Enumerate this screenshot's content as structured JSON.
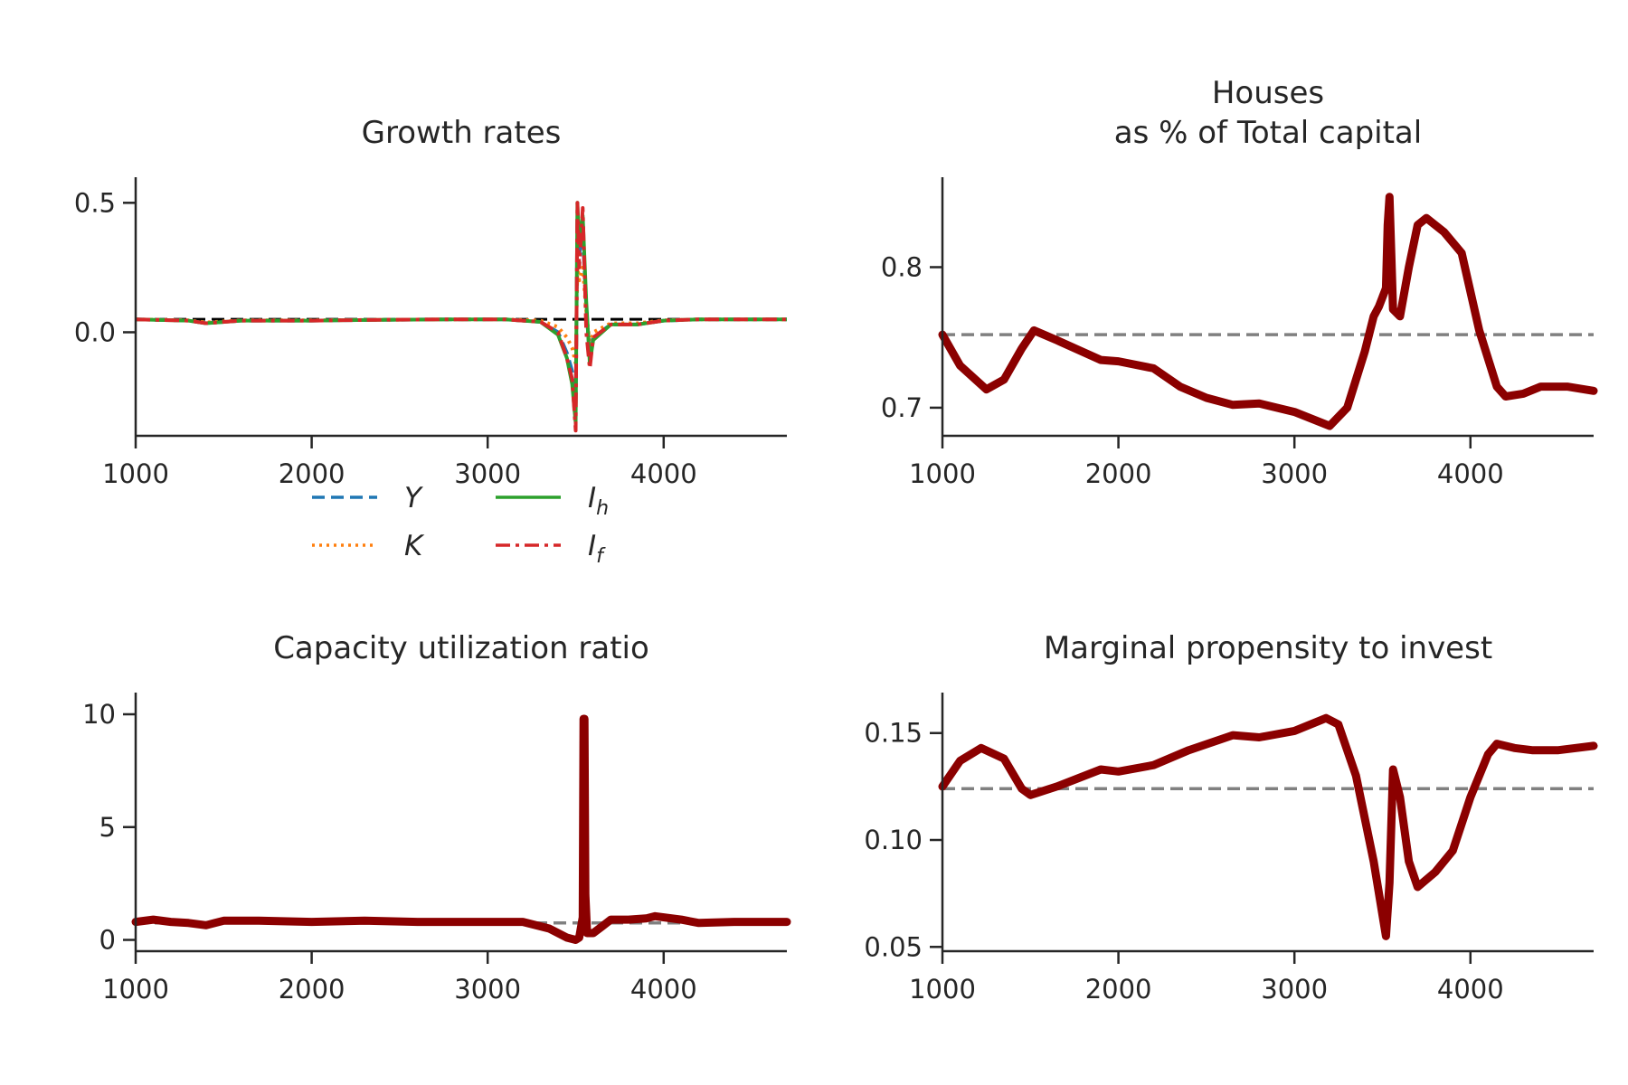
{
  "chart_data": [
    {
      "type": "line",
      "title": "Growth rates",
      "xlim": [
        1000,
        4700
      ],
      "ylim": [
        -0.4,
        0.55
      ],
      "x_ticks": [
        1000,
        2000,
        3000,
        4000
      ],
      "y_ticks": [
        0.0,
        0.5
      ],
      "y_tick_labels": [
        "0.0",
        "0.5"
      ],
      "reference_line": {
        "y": 0.05,
        "color": "#000000",
        "style": "dashed"
      },
      "legend": {
        "placement": "below",
        "columns": 2
      },
      "series": [
        {
          "name": "Y",
          "legend_label": "Y",
          "color": "#1f77b4",
          "style": "dashed",
          "x": [
            1000,
            1300,
            1400,
            1600,
            2000,
            2400,
            2800,
            3100,
            3300,
            3400,
            3450,
            3480,
            3500,
            3510,
            3520,
            3540,
            3560,
            3580,
            3600,
            3700,
            3850,
            4000,
            4200,
            4700
          ],
          "y": [
            0.05,
            0.045,
            0.035,
            0.045,
            0.045,
            0.048,
            0.05,
            0.05,
            0.04,
            0.0,
            -0.08,
            -0.15,
            -0.3,
            0.45,
            0.3,
            0.38,
            0.1,
            -0.1,
            -0.02,
            0.03,
            0.03,
            0.045,
            0.05,
            0.05
          ]
        },
        {
          "name": "K",
          "legend_label": "K",
          "color": "#ff7f0e",
          "style": "dotted",
          "x": [
            1000,
            1300,
            1400,
            1600,
            2000,
            2400,
            2800,
            3100,
            3300,
            3400,
            3450,
            3480,
            3500,
            3510,
            3520,
            3540,
            3560,
            3580,
            3600,
            3700,
            3850,
            4000,
            4200,
            4700
          ],
          "y": [
            0.05,
            0.046,
            0.038,
            0.046,
            0.046,
            0.048,
            0.05,
            0.05,
            0.045,
            0.02,
            -0.02,
            -0.06,
            -0.12,
            0.25,
            0.2,
            0.25,
            0.08,
            -0.05,
            0.0,
            0.035,
            0.035,
            0.046,
            0.05,
            0.05
          ]
        },
        {
          "name": "I_h",
          "legend_label": "I",
          "legend_sub": "h",
          "color": "#2ca02c",
          "style": "solid",
          "x": [
            1000,
            1300,
            1400,
            1600,
            2000,
            2400,
            2800,
            3100,
            3300,
            3400,
            3450,
            3480,
            3500,
            3510,
            3520,
            3540,
            3560,
            3580,
            3600,
            3700,
            3850,
            4000,
            4200,
            4700
          ],
          "y": [
            0.05,
            0.045,
            0.035,
            0.045,
            0.045,
            0.048,
            0.05,
            0.05,
            0.04,
            -0.01,
            -0.1,
            -0.2,
            -0.35,
            0.5,
            0.35,
            0.45,
            0.12,
            -0.12,
            -0.03,
            0.03,
            0.03,
            0.045,
            0.05,
            0.05
          ]
        },
        {
          "name": "I_f",
          "legend_label": "I",
          "legend_sub": "f",
          "color": "#d62728",
          "style": "dashdot",
          "x": [
            1000,
            1300,
            1400,
            1600,
            2000,
            2400,
            2800,
            3100,
            3300,
            3400,
            3450,
            3480,
            3500,
            3510,
            3520,
            3540,
            3560,
            3580,
            3600,
            3700,
            3850,
            4000,
            4200,
            4700
          ],
          "y": [
            0.05,
            0.045,
            0.035,
            0.045,
            0.045,
            0.048,
            0.05,
            0.05,
            0.04,
            0.0,
            -0.1,
            -0.18,
            -0.38,
            0.5,
            0.25,
            0.48,
            0.0,
            -0.14,
            -0.02,
            0.03,
            0.03,
            0.045,
            0.05,
            0.05
          ]
        }
      ]
    },
    {
      "type": "line",
      "title": "Houses\nas % of Total capital",
      "xlim": [
        1000,
        4700
      ],
      "ylim": [
        0.68,
        0.855
      ],
      "x_ticks": [
        1000,
        2000,
        3000,
        4000
      ],
      "y_ticks": [
        0.7,
        0.8
      ],
      "y_tick_labels": [
        "0.7",
        "0.8"
      ],
      "reference_line": {
        "y": 0.752,
        "color": "#808080",
        "style": "dashed"
      },
      "series": [
        {
          "color": "#8b0000",
          "style": "solid",
          "x": [
            1000,
            1100,
            1250,
            1350,
            1450,
            1520,
            1650,
            1900,
            2000,
            2200,
            2350,
            2500,
            2650,
            2800,
            3000,
            3200,
            3300,
            3400,
            3450,
            3480,
            3520,
            3530,
            3540,
            3560,
            3600,
            3650,
            3700,
            3750,
            3850,
            3950,
            4050,
            4150,
            4200,
            4300,
            4400,
            4550,
            4700
          ],
          "y": [
            0.752,
            0.73,
            0.713,
            0.72,
            0.742,
            0.755,
            0.748,
            0.734,
            0.733,
            0.728,
            0.715,
            0.707,
            0.702,
            0.703,
            0.697,
            0.687,
            0.7,
            0.74,
            0.765,
            0.772,
            0.785,
            0.83,
            0.85,
            0.77,
            0.765,
            0.8,
            0.83,
            0.835,
            0.825,
            0.81,
            0.755,
            0.715,
            0.708,
            0.71,
            0.715,
            0.715,
            0.712
          ]
        }
      ]
    },
    {
      "type": "line",
      "title": "Capacity utilization ratio",
      "xlim": [
        1000,
        4700
      ],
      "ylim": [
        -0.5,
        10.4
      ],
      "x_ticks": [
        1000,
        2000,
        3000,
        4000
      ],
      "y_ticks": [
        0,
        5,
        10
      ],
      "y_tick_labels": [
        "0",
        "5",
        "10"
      ],
      "reference_line": {
        "y": 0.75,
        "color": "#808080",
        "style": "dashed"
      },
      "series": [
        {
          "color": "#8b0000",
          "style": "solid",
          "x": [
            1000,
            1100,
            1200,
            1300,
            1400,
            1500,
            1700,
            2000,
            2300,
            2600,
            2900,
            3200,
            3350,
            3450,
            3500,
            3520,
            3540,
            3545,
            3550,
            3555,
            3565,
            3600,
            3650,
            3700,
            3800,
            3900,
            3950,
            4000,
            4100,
            4200,
            4400,
            4700
          ],
          "y": [
            0.8,
            0.9,
            0.8,
            0.75,
            0.65,
            0.85,
            0.85,
            0.8,
            0.85,
            0.8,
            0.8,
            0.8,
            0.5,
            0.1,
            0.0,
            0.1,
            1.0,
            9.8,
            9.8,
            2.0,
            0.3,
            0.3,
            0.6,
            0.9,
            0.9,
            0.95,
            1.05,
            1.0,
            0.9,
            0.75,
            0.8,
            0.8
          ]
        }
      ]
    },
    {
      "type": "line",
      "title": "Marginal propensity to invest",
      "xlim": [
        1000,
        4700
      ],
      "ylim": [
        0.048,
        0.163
      ],
      "x_ticks": [
        1000,
        2000,
        3000,
        4000
      ],
      "y_ticks": [
        0.05,
        0.1,
        0.15
      ],
      "y_tick_labels": [
        "0.05",
        "0.10",
        "0.15"
      ],
      "reference_line": {
        "y": 0.124,
        "color": "#808080",
        "style": "dashed"
      },
      "series": [
        {
          "color": "#8b0000",
          "style": "solid",
          "x": [
            1000,
            1100,
            1220,
            1350,
            1450,
            1500,
            1650,
            1900,
            2000,
            2200,
            2400,
            2650,
            2800,
            3000,
            3180,
            3250,
            3350,
            3450,
            3520,
            3540,
            3560,
            3600,
            3650,
            3700,
            3800,
            3900,
            4000,
            4100,
            4150,
            4250,
            4350,
            4500,
            4700
          ],
          "y": [
            0.125,
            0.137,
            0.143,
            0.138,
            0.124,
            0.121,
            0.125,
            0.133,
            0.132,
            0.135,
            0.142,
            0.149,
            0.148,
            0.151,
            0.157,
            0.154,
            0.13,
            0.09,
            0.055,
            0.08,
            0.133,
            0.12,
            0.09,
            0.078,
            0.085,
            0.095,
            0.12,
            0.14,
            0.145,
            0.143,
            0.142,
            0.142,
            0.144
          ]
        }
      ]
    }
  ]
}
